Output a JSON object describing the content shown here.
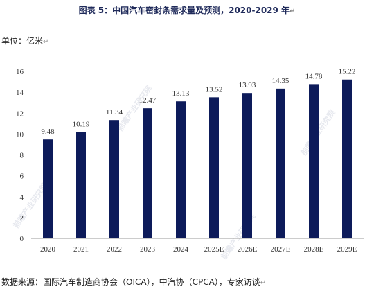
{
  "title": "图表 5：中国汽车密封条需求量及预测，2020-2029 年",
  "unit_label": "单位：亿米",
  "source": "数据来源：国际汽车制造商协会（OICA），中汽协（CPCA），专家访谈",
  "watermark": "前瞻产业研究院",
  "paragraph_mark": "↵",
  "colors": {
    "bar": "#0d1b5a",
    "axis": "#999999"
  },
  "chart_data": {
    "type": "bar",
    "title": "图表 5：中国汽车密封条需求量及预测，2020-2029 年",
    "ylabel": "单位：亿米",
    "xlabel": "",
    "categories": [
      "2020",
      "2021",
      "2022",
      "2023",
      "2024",
      "2025E",
      "2026E",
      "2027E",
      "2028E",
      "2029E"
    ],
    "values": [
      9.48,
      10.19,
      11.34,
      12.47,
      13.13,
      13.52,
      13.93,
      14.35,
      14.78,
      15.22
    ],
    "value_labels": [
      "9.48",
      "10.19",
      "11.34",
      "12.47",
      "13.13",
      "13.52",
      "13.93",
      "14.35",
      "14.78",
      "15.22"
    ],
    "ylim": [
      0,
      16
    ],
    "yticks": [
      0,
      2,
      4,
      6,
      8,
      10,
      12,
      14,
      16
    ],
    "grid": false,
    "legend": "none"
  }
}
